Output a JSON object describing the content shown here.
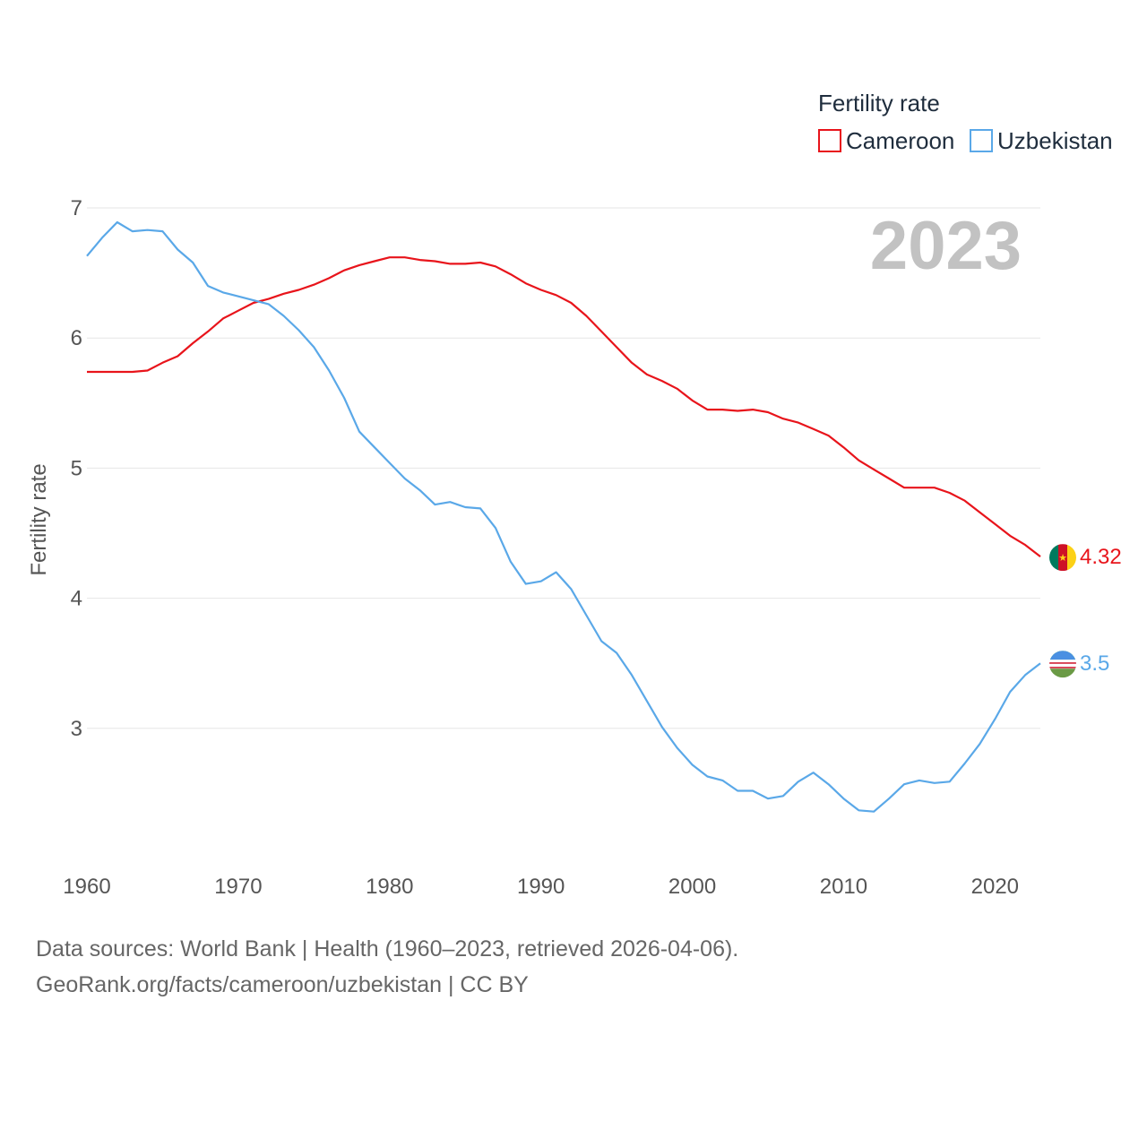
{
  "footer": {
    "sources": "Data sources: World Bank | Health (1960–2023, retrieved 2026-04-06).",
    "credit": "GeoRank.org/facts/cameroon/uzbekistan | CC BY"
  },
  "chart_data": {
    "type": "line",
    "title": "Fertility rate",
    "ylabel": "Fertility rate",
    "xlabel": "",
    "xlim": [
      1960,
      2023
    ],
    "ylim": [
      2,
      7
    ],
    "year_label": "2023",
    "x_ticks": [
      "1960",
      "1970",
      "1980",
      "1990",
      "2000",
      "2010",
      "2020"
    ],
    "y_ticks": [
      "3",
      "4",
      "5",
      "6",
      "7"
    ],
    "x": [
      1960,
      1961,
      1962,
      1963,
      1964,
      1965,
      1966,
      1967,
      1968,
      1969,
      1970,
      1971,
      1972,
      1973,
      1974,
      1975,
      1976,
      1977,
      1978,
      1979,
      1980,
      1981,
      1982,
      1983,
      1984,
      1985,
      1986,
      1987,
      1988,
      1989,
      1990,
      1991,
      1992,
      1993,
      1994,
      1995,
      1996,
      1997,
      1998,
      1999,
      2000,
      2001,
      2002,
      2003,
      2004,
      2005,
      2006,
      2007,
      2008,
      2009,
      2010,
      2011,
      2012,
      2013,
      2014,
      2015,
      2016,
      2017,
      2018,
      2019,
      2020,
      2021,
      2022,
      2023
    ],
    "series": [
      {
        "name": "Cameroon",
        "color": "#e8141b",
        "end_label": "4.32",
        "flag": "cameroon-flag",
        "values": [
          5.74,
          5.74,
          5.74,
          5.74,
          5.75,
          5.81,
          5.86,
          5.96,
          6.05,
          6.15,
          6.21,
          6.27,
          6.3,
          6.34,
          6.37,
          6.41,
          6.46,
          6.52,
          6.56,
          6.59,
          6.62,
          6.62,
          6.6,
          6.59,
          6.57,
          6.57,
          6.58,
          6.55,
          6.49,
          6.42,
          6.37,
          6.33,
          6.27,
          6.17,
          6.05,
          5.93,
          5.81,
          5.72,
          5.67,
          5.61,
          5.52,
          5.45,
          5.45,
          5.44,
          5.45,
          5.43,
          5.38,
          5.35,
          5.3,
          5.25,
          5.16,
          5.06,
          4.99,
          4.92,
          4.85,
          4.85,
          4.85,
          4.81,
          4.75,
          4.66,
          4.57,
          4.48,
          4.41,
          4.32
        ]
      },
      {
        "name": "Uzbekistan",
        "color": "#5aa8e8",
        "end_label": "3.5",
        "flag": "uzbekistan-flag",
        "values": [
          6.63,
          6.77,
          6.89,
          6.82,
          6.83,
          6.82,
          6.68,
          6.58,
          6.4,
          6.35,
          6.32,
          6.29,
          6.26,
          6.17,
          6.06,
          5.93,
          5.75,
          5.54,
          5.28,
          5.16,
          5.04,
          4.92,
          4.83,
          4.72,
          4.74,
          4.7,
          4.69,
          4.54,
          4.28,
          4.11,
          4.13,
          4.2,
          4.07,
          3.87,
          3.67,
          3.58,
          3.41,
          3.21,
          3.01,
          2.85,
          2.72,
          2.63,
          2.6,
          2.52,
          2.52,
          2.46,
          2.48,
          2.59,
          2.66,
          2.57,
          2.46,
          2.37,
          2.36,
          2.46,
          2.57,
          2.6,
          2.58,
          2.59,
          2.73,
          2.88,
          3.07,
          3.28,
          3.41,
          3.5
        ]
      }
    ],
    "legend_position": "top-right",
    "grid": true
  }
}
